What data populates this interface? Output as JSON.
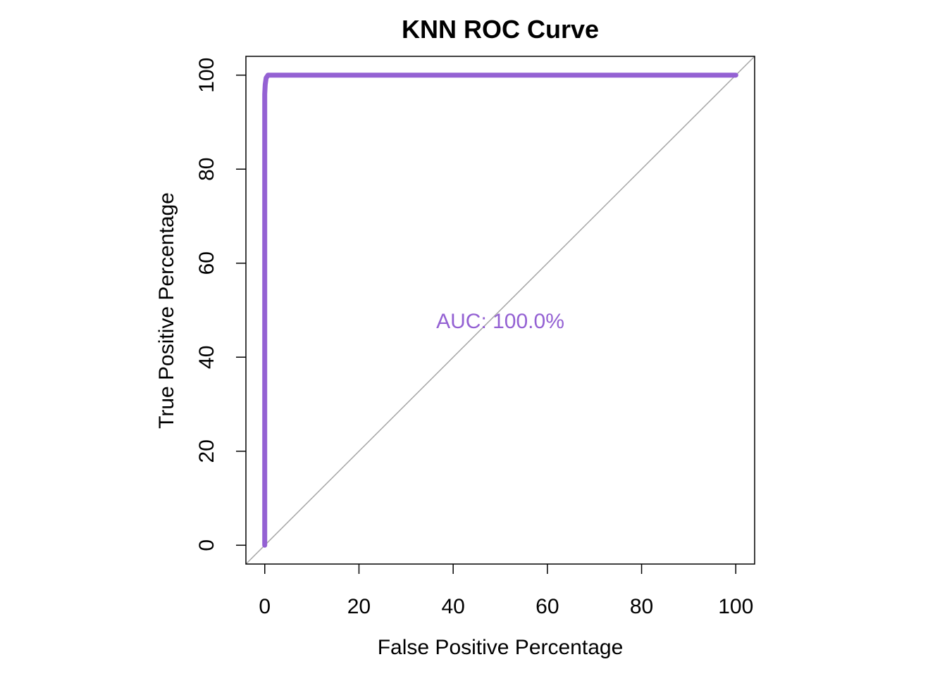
{
  "chart_data": {
    "type": "line",
    "title": "KNN ROC Curve",
    "xlabel": "False Positive Percentage",
    "ylabel": "True Positive Percentage",
    "xlim": [
      -4,
      104
    ],
    "ylim": [
      -4,
      104
    ],
    "x_ticks": [
      0,
      20,
      40,
      60,
      80,
      100
    ],
    "y_ticks": [
      0,
      20,
      40,
      60,
      80,
      100
    ],
    "x_tick_labels": [
      "0",
      "20",
      "40",
      "60",
      "80",
      "100"
    ],
    "y_tick_labels": [
      "0",
      "20",
      "40",
      "60",
      "80",
      "100"
    ],
    "grid": false,
    "legend": "none",
    "series": [
      {
        "color": "#9461D3",
        "points": [
          [
            0,
            0
          ],
          [
            0,
            90
          ],
          [
            0,
            96
          ],
          [
            0.1,
            98
          ],
          [
            0.3,
            99.4
          ],
          [
            0.7,
            100
          ],
          [
            100,
            100
          ]
        ]
      }
    ],
    "reference_line": {
      "points": [
        [
          -4,
          -4
        ],
        [
          104,
          104
        ]
      ],
      "color": "#A6A6A6"
    },
    "annotation": {
      "text": "AUC: 100.0%",
      "x": 50,
      "y": 47.7,
      "color": "#9461D3"
    }
  }
}
